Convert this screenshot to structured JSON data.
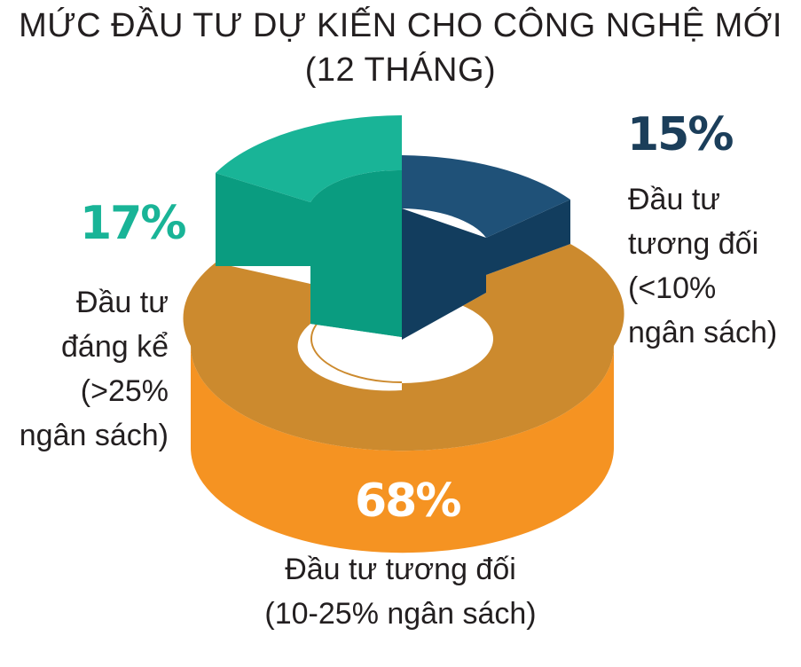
{
  "title_line1": "MỨC ĐẦU TƯ DỰ KIẾN CHO CÔNG NGHỆ MỚI",
  "title_line2": "(12 THÁNG)",
  "chart_data": {
    "type": "pie",
    "style": "3d-donut, exploded segments",
    "slices": [
      {
        "label": "Đầu tư tương đối (<10% ngân sách)",
        "value": 15,
        "value_text": "15%",
        "color": "#1f5178",
        "color_side": "#123d5e"
      },
      {
        "label": "Đầu tư tương đối (10-25% ngân sách)",
        "value": 68,
        "value_text": "68%",
        "color": "#cc8a2e",
        "color_side": "#f59322"
      },
      {
        "label": "Đầu tư đáng kể (>25% ngân sách)",
        "value": 17,
        "value_text": "17%",
        "color": "#19b497",
        "color_side": "#0a9c80"
      }
    ]
  },
  "labels": {
    "s15": {
      "pct": "15%",
      "desc": "Đầu tư\ntương đối\n(<10%\nngân sách)",
      "color": "#1b3e5a"
    },
    "s68": {
      "pct": "68%",
      "desc": "Đầu tư tương đối\n(10-25% ngân sách)",
      "color": "#ffffff"
    },
    "s17": {
      "pct": "17%",
      "desc": "Đầu tư\nđáng kể\n(>25%\nngân sách)",
      "color": "#19b497"
    }
  }
}
